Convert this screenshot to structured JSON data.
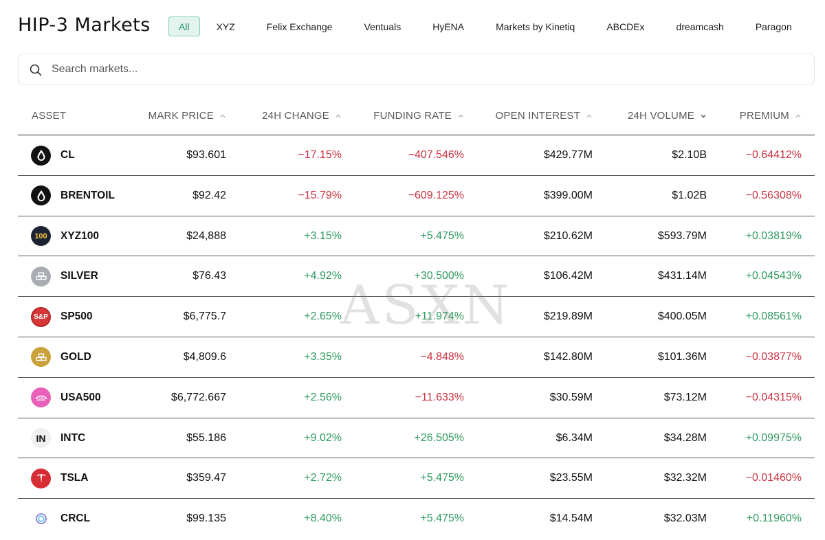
{
  "header": {
    "title": "HIP-3 Markets",
    "tabs": [
      "All",
      "XYZ",
      "Felix Exchange",
      "Ventuals",
      "HyENA",
      "Markets by Kinetiq",
      "ABCDEx",
      "dreamcash",
      "Paragon"
    ],
    "active_tab": "All"
  },
  "search": {
    "placeholder": "Search markets..."
  },
  "table": {
    "columns": [
      {
        "label": "ASSET"
      },
      {
        "label": "MARK PRICE",
        "sort": "up"
      },
      {
        "label": "24H CHANGE",
        "sort": "up"
      },
      {
        "label": "FUNDING RATE",
        "sort": "up"
      },
      {
        "label": "OPEN INTEREST",
        "sort": "up"
      },
      {
        "label": "24H VOLUME",
        "sort": "down"
      },
      {
        "label": "PREMIUM",
        "sort": "up"
      }
    ],
    "rows": [
      {
        "asset": "CL",
        "icon": "oil-drop-icon",
        "mark_price": "$93.601",
        "change_24h": "−17.15%",
        "funding_rate": "−407.546%",
        "open_interest": "$429.77M",
        "volume_24h": "$2.10B",
        "premium": "−0.64412%"
      },
      {
        "asset": "BRENTOIL",
        "icon": "oil-drop-icon",
        "mark_price": "$92.42",
        "change_24h": "−15.79%",
        "funding_rate": "−609.125%",
        "open_interest": "$399.00M",
        "volume_24h": "$1.02B",
        "premium": "−0.56308%"
      },
      {
        "asset": "XYZ100",
        "icon": "xyz100-icon",
        "icon_text": "100",
        "mark_price": "$24,888",
        "change_24h": "+3.15%",
        "funding_rate": "+5.475%",
        "open_interest": "$210.62M",
        "volume_24h": "$593.79M",
        "premium": "+0.03819%"
      },
      {
        "asset": "SILVER",
        "icon": "silver-bars-icon",
        "mark_price": "$76.43",
        "change_24h": "+4.92%",
        "funding_rate": "+30.500%",
        "open_interest": "$106.42M",
        "volume_24h": "$431.14M",
        "premium": "+0.04543%"
      },
      {
        "asset": "SP500",
        "icon": "sp500-icon",
        "icon_text": "S&P",
        "mark_price": "$6,775.7",
        "change_24h": "+2.65%",
        "funding_rate": "+11.974%",
        "open_interest": "$219.89M",
        "volume_24h": "$400.05M",
        "premium": "+0.08561%"
      },
      {
        "asset": "GOLD",
        "icon": "gold-bars-icon",
        "mark_price": "$4,809.6",
        "change_24h": "+3.35%",
        "funding_rate": "−4.848%",
        "open_interest": "$142.80M",
        "volume_24h": "$101.36M",
        "premium": "−0.03877%"
      },
      {
        "asset": "USA500",
        "icon": "usa500-icon",
        "mark_price": "$6,772.667",
        "change_24h": "+2.56%",
        "funding_rate": "−11.633%",
        "open_interest": "$30.59M",
        "volume_24h": "$73.12M",
        "premium": "−0.04315%"
      },
      {
        "asset": "INTC",
        "icon": "intc-icon",
        "icon_text": "IN",
        "mark_price": "$55.186",
        "change_24h": "+9.02%",
        "funding_rate": "+26.505%",
        "open_interest": "$6.34M",
        "volume_24h": "$34.28M",
        "premium": "+0.09975%"
      },
      {
        "asset": "TSLA",
        "icon": "tesla-logo-icon",
        "mark_price": "$359.47",
        "change_24h": "+2.72%",
        "funding_rate": "+5.475%",
        "open_interest": "$23.55M",
        "volume_24h": "$32.32M",
        "premium": "−0.01460%"
      },
      {
        "asset": "CRCL",
        "icon": "crcl-icon",
        "mark_price": "$99.135",
        "change_24h": "+8.40%",
        "funding_rate": "+5.475%",
        "open_interest": "$14.54M",
        "volume_24h": "$32.03M",
        "premium": "+0.11960%"
      }
    ]
  },
  "watermark": "ASXN",
  "colors": {
    "positive": "#2e9a5e",
    "negative": "#c93140",
    "accent": "#2d8f6f",
    "accent_bg": "#e3f4ee"
  }
}
